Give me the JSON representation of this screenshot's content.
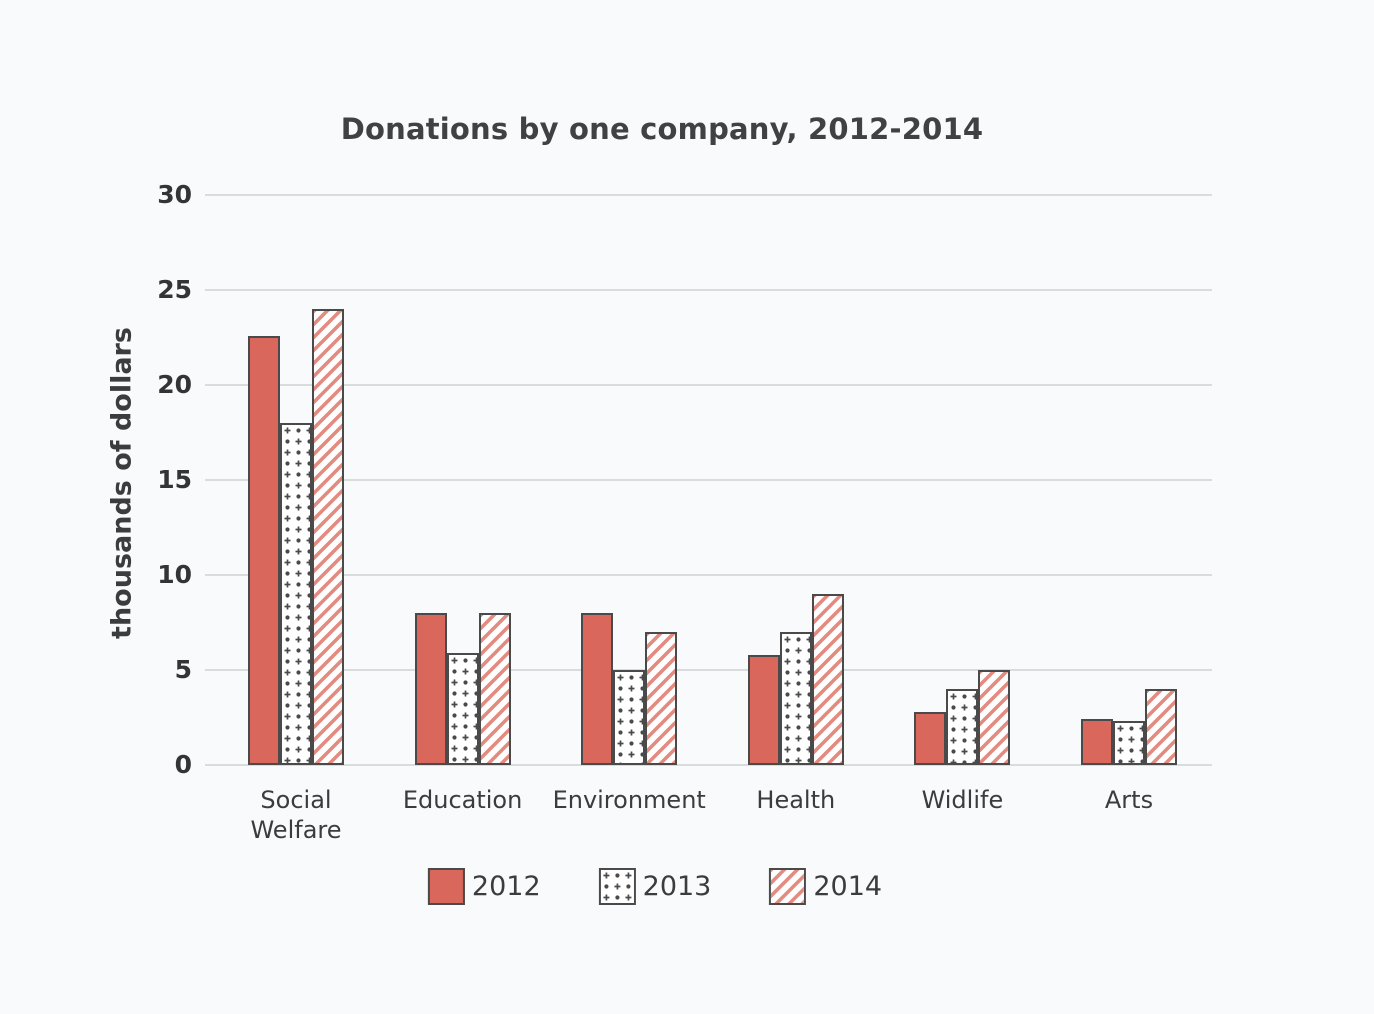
{
  "chart_data": {
    "type": "bar",
    "title": "Donations by one company, 2012-2014",
    "ylabel": "thousands of dollars",
    "xlabel": "",
    "categories": [
      "Social\nWelfare",
      "Education",
      "Environment",
      "Health",
      "Widlife",
      "Arts"
    ],
    "series": [
      {
        "name": "2012",
        "style": "solid",
        "color": "#d9675c",
        "values": [
          22.6,
          8,
          8,
          5.8,
          2.8,
          2.4
        ]
      },
      {
        "name": "2013",
        "style": "cross-dot-pattern",
        "color": "#ffffff",
        "values": [
          18,
          5.9,
          5,
          7,
          4,
          2.3
        ]
      },
      {
        "name": "2014",
        "style": "diagonal-stripes",
        "color": "#e28b81",
        "values": [
          24,
          8,
          7,
          9,
          5,
          4
        ]
      }
    ],
    "yticks": [
      0,
      5,
      10,
      15,
      20,
      25,
      30
    ],
    "ylim": [
      0,
      30
    ],
    "grid": "horizontal",
    "legend_position": "bottom"
  },
  "colors": {
    "background": "#f8fafb",
    "bar_solid": "#d9675c",
    "stripe": "#e28b81",
    "bar_border": "#4a4a4a",
    "gridline": "#d9dcdc",
    "text": "#3a3c3e"
  }
}
